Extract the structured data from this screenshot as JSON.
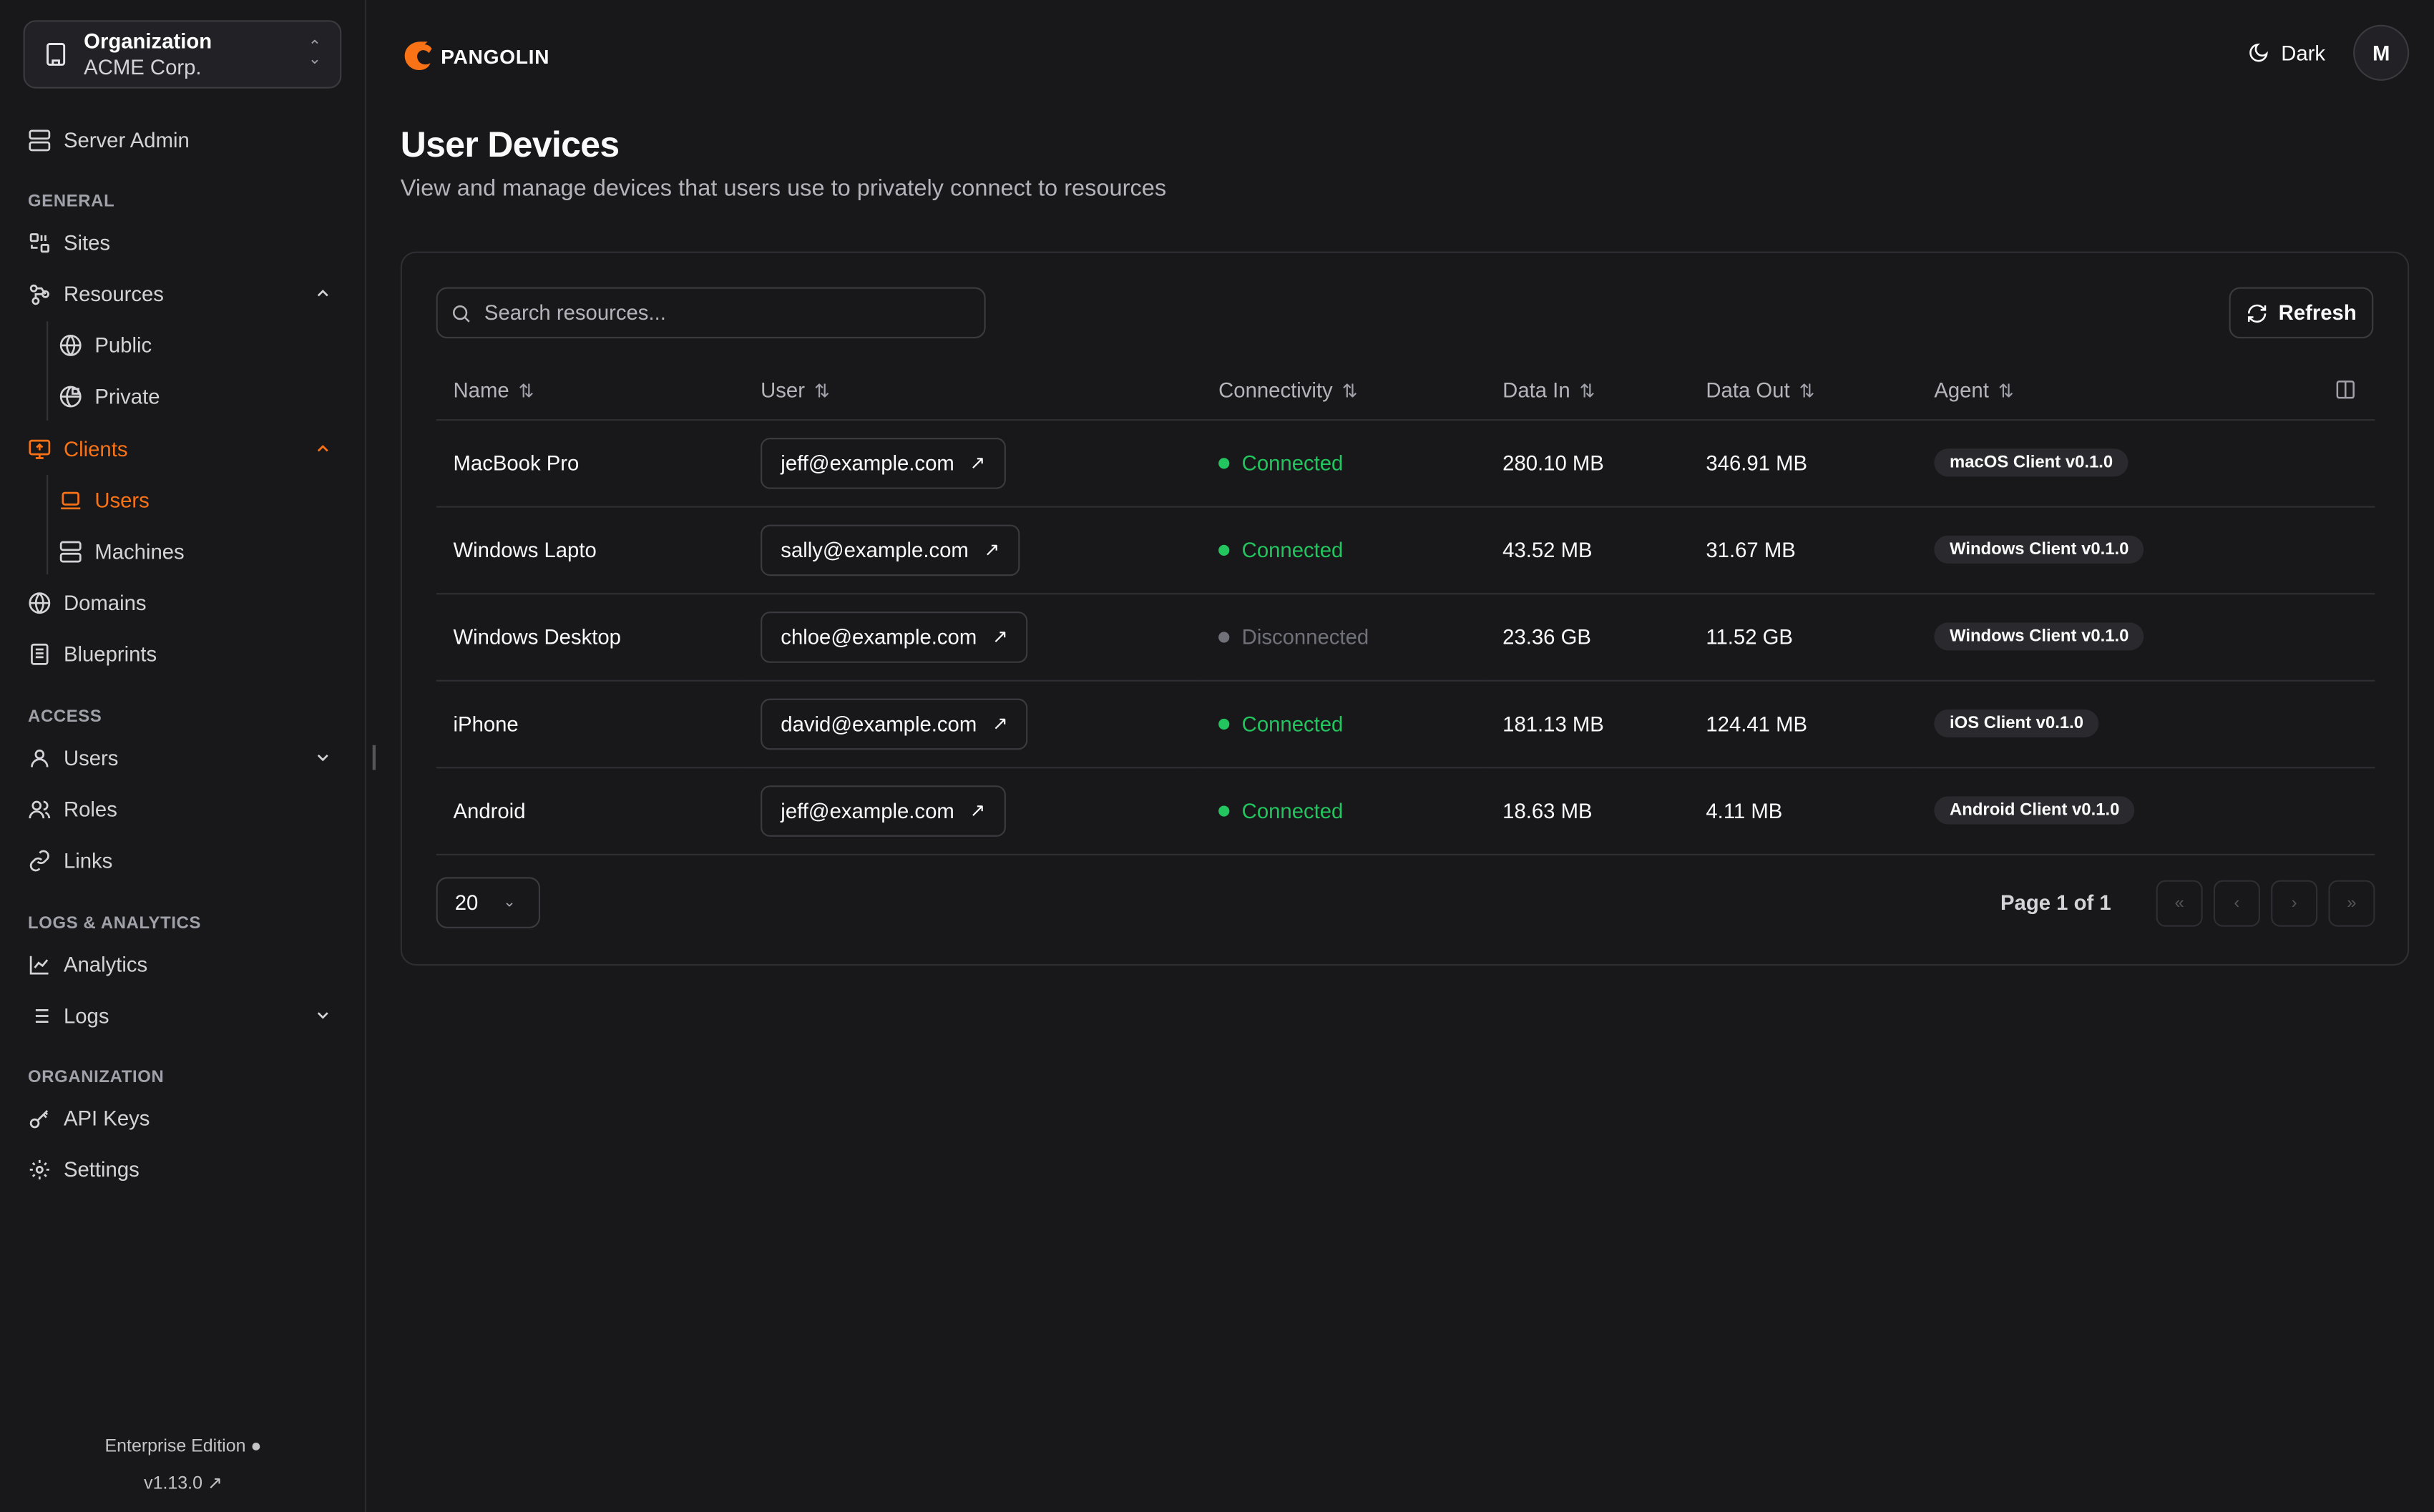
{
  "sidebar": {
    "org_label": "Organization",
    "org_name": "ACME Corp.",
    "server_admin": "Server Admin",
    "sections": {
      "general": "GENERAL",
      "access": "ACCESS",
      "logs": "LOGS & ANALYTICS",
      "organization": "ORGANIZATION"
    },
    "items": {
      "sites": "Sites",
      "resources": "Resources",
      "public": "Public",
      "private": "Private",
      "clients": "Clients",
      "users": "Users",
      "machines": "Machines",
      "domains": "Domains",
      "blueprints": "Blueprints",
      "access_users": "Users",
      "roles": "Roles",
      "links": "Links",
      "analytics": "Analytics",
      "logs": "Logs",
      "api_keys": "API Keys",
      "settings": "Settings"
    },
    "edition": "Enterprise Edition",
    "version": "v1.13.0"
  },
  "header": {
    "brand": "PANGOLIN",
    "theme": "Dark",
    "avatar": "M"
  },
  "page": {
    "title": "User Devices",
    "subtitle": "View and manage devices that users use to privately connect to resources"
  },
  "toolbar": {
    "search_placeholder": "Search resources...",
    "refresh": "Refresh"
  },
  "table": {
    "columns": [
      "Name",
      "User",
      "Connectivity",
      "Data In",
      "Data Out",
      "Agent"
    ],
    "rows": [
      {
        "name": "MacBook Pro",
        "user": "jeff@example.com",
        "status": "Connected",
        "data_in": "280.10 MB",
        "data_out": "346.91 MB",
        "agent": "macOS Client v0.1.0"
      },
      {
        "name": "Windows Lapto",
        "user": "sally@example.com",
        "status": "Connected",
        "data_in": "43.52 MB",
        "data_out": "31.67 MB",
        "agent": "Windows Client v0.1.0"
      },
      {
        "name": "Windows Desktop",
        "user": "chloe@example.com",
        "status": "Disconnected",
        "data_in": "23.36 GB",
        "data_out": "11.52 GB",
        "agent": "Windows Client v0.1.0"
      },
      {
        "name": "iPhone",
        "user": "david@example.com",
        "status": "Connected",
        "data_in": "181.13 MB",
        "data_out": "124.41 MB",
        "agent": "iOS Client v0.1.0"
      },
      {
        "name": "Android",
        "user": "jeff@example.com",
        "status": "Connected",
        "data_in": "18.63 MB",
        "data_out": "4.11 MB",
        "agent": "Android Client v0.1.0"
      }
    ]
  },
  "pagination": {
    "page_size": "20",
    "page_text": "Page 1 of 1"
  },
  "colors": {
    "accent": "#f97316",
    "connected": "#22c55e",
    "disconnected": "#71717a",
    "background": "#18181b"
  }
}
